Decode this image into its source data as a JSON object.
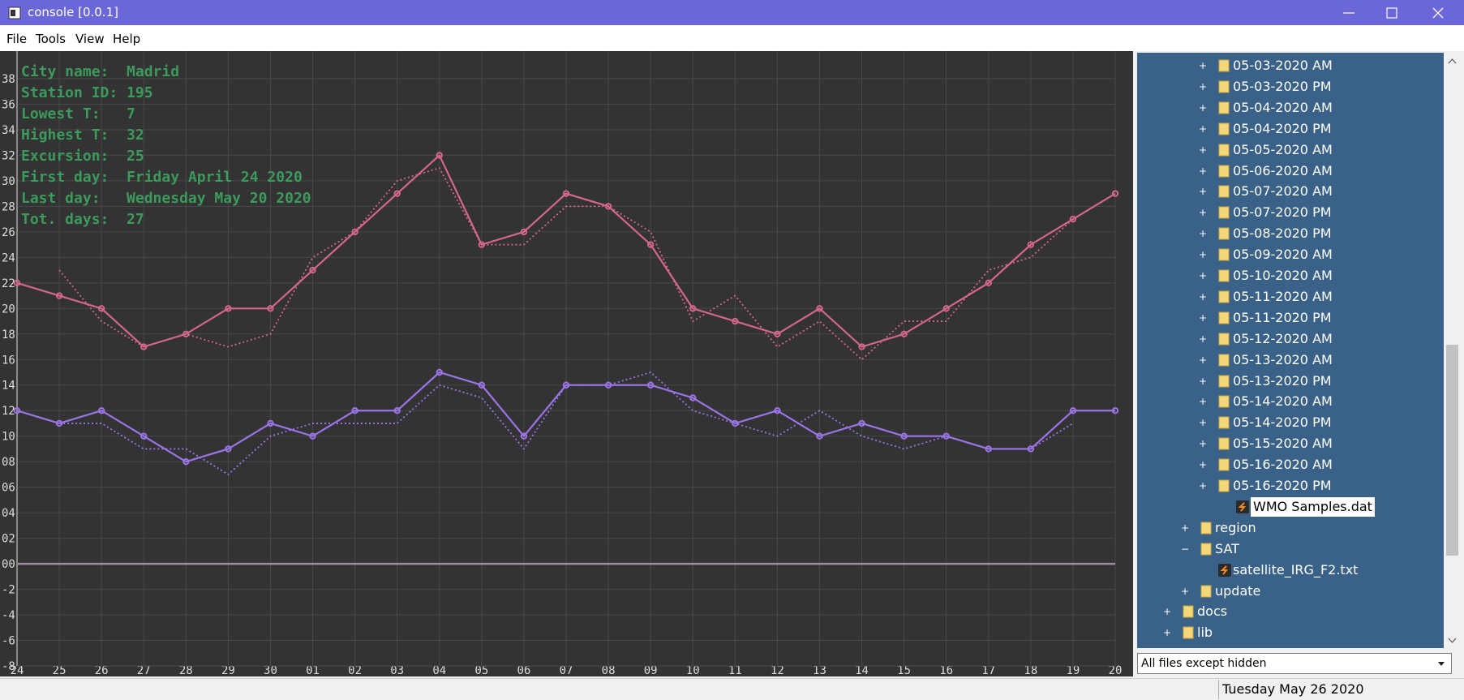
{
  "window": {
    "title": "console [0.0.1]"
  },
  "menu": [
    "File",
    "Tools",
    "View",
    "Help"
  ],
  "info": [
    "City name:  Madrid",
    "Station ID: 195",
    "Lowest T:   7",
    "Highest T:  32",
    "Excursion:  25",
    "First day:  Friday April 24 2020",
    "Last day:   Wednesday May 20 2020",
    "Tot. days:  27"
  ],
  "chart_data": {
    "type": "line",
    "categories": [
      "24",
      "25",
      "26",
      "27",
      "28",
      "29",
      "30",
      "01",
      "02",
      "03",
      "04",
      "05",
      "06",
      "07",
      "08",
      "09",
      "10",
      "11",
      "12",
      "13",
      "14",
      "15",
      "16",
      "17",
      "18",
      "19",
      "20"
    ],
    "ylim": [
      -8,
      38
    ],
    "yticks": [
      -8,
      -6,
      -4,
      -2,
      {
        "value": 0,
        "label": "00"
      },
      {
        "value": 2,
        "label": "02"
      },
      {
        "value": 4,
        "label": "04"
      },
      {
        "value": 6,
        "label": "06"
      },
      {
        "value": 8,
        "label": "08"
      },
      10,
      12,
      14,
      16,
      18,
      20,
      22,
      24,
      26,
      28,
      30,
      32,
      34,
      36,
      38
    ],
    "grid": true,
    "series": [
      {
        "color": "#d4668e",
        "style": "solid",
        "values": [
          22,
          21,
          20,
          17,
          18,
          20,
          20,
          23,
          26,
          29,
          32,
          25,
          26,
          29,
          28,
          25,
          20,
          19,
          18,
          20,
          17,
          18,
          20,
          22,
          25,
          27,
          29
        ]
      },
      {
        "color": "#d4668e",
        "style": "dotted",
        "values": [
          null,
          23,
          19,
          17,
          18,
          17,
          18,
          24,
          26,
          30,
          31,
          25,
          25,
          28,
          28,
          26,
          19,
          21,
          17,
          19,
          16,
          19,
          19,
          23,
          24,
          27,
          null
        ]
      },
      {
        "color": "#9b74e8",
        "style": "solid",
        "values": [
          12,
          11,
          12,
          10,
          8,
          9,
          11,
          10,
          12,
          12,
          15,
          14,
          10,
          14,
          14,
          14,
          13,
          11,
          12,
          10,
          11,
          10,
          10,
          9,
          9,
          12,
          12
        ]
      },
      {
        "color": "#9b74e8",
        "style": "dotted",
        "values": [
          null,
          11,
          11,
          9,
          9,
          7,
          10,
          11,
          11,
          11,
          14,
          13,
          9,
          14,
          14,
          15,
          12,
          11,
          10,
          12,
          10,
          9,
          10,
          9,
          9,
          11,
          null
        ]
      }
    ]
  },
  "tree": {
    "items": [
      "05-03-2020 AM",
      "05-03-2020 PM",
      "05-04-2020 AM",
      "05-04-2020 PM",
      "05-05-2020 AM",
      "05-06-2020 AM",
      "05-07-2020 AM",
      "05-07-2020 PM",
      "05-08-2020 PM",
      "05-09-2020 AM",
      "05-10-2020 AM",
      "05-11-2020 AM",
      "05-11-2020 PM",
      "05-12-2020 AM",
      "05-13-2020 AM",
      "05-13-2020 PM",
      "05-14-2020 AM",
      "05-14-2020 PM",
      "05-15-2020 AM",
      "05-16-2020 AM",
      "05-16-2020 PM",
      "WMO Samples.dat",
      "region",
      "SAT",
      "satellite_IRG_F2.txt",
      "update",
      "docs",
      "lib"
    ]
  },
  "filter": "All files except hidden",
  "status": "Tuesday May 26 2020"
}
